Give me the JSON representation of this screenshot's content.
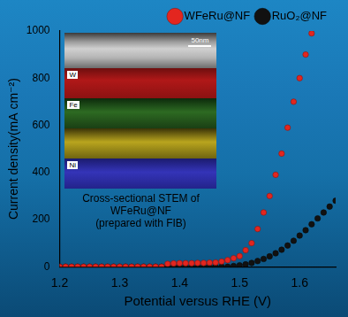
{
  "chart_data": {
    "type": "scatter",
    "x_label": "Potential versus RHE (V)",
    "y_label": "Current density(mA cm⁻²)",
    "x": [
      1.2,
      1.21,
      1.22,
      1.23,
      1.24,
      1.25,
      1.26,
      1.27,
      1.28,
      1.29,
      1.3,
      1.31,
      1.32,
      1.33,
      1.34,
      1.35,
      1.36,
      1.37,
      1.38,
      1.39,
      1.4,
      1.41,
      1.42,
      1.43,
      1.44,
      1.45,
      1.46,
      1.47,
      1.48,
      1.49,
      1.5,
      1.51,
      1.52,
      1.53,
      1.54,
      1.55,
      1.56,
      1.57,
      1.58,
      1.59,
      1.6,
      1.61,
      1.62,
      1.63,
      1.64,
      1.65,
      1.66
    ],
    "series": [
      {
        "name": "WFeRu@NF",
        "color": "#e3261f",
        "marker": "circle",
        "values": [
          0,
          0,
          0,
          0,
          0,
          0,
          0,
          0,
          0,
          0,
          0,
          0,
          0,
          0,
          0,
          0,
          0,
          0,
          12,
          14,
          15,
          15,
          15,
          16,
          16,
          17,
          18,
          22,
          28,
          36,
          45,
          70,
          100,
          160,
          230,
          300,
          390,
          480,
          590,
          700,
          800,
          900,
          990,
          null,
          null,
          null,
          null
        ]
      },
      {
        "name": "RuO₂@NF",
        "color": "#111111",
        "marker": "circle",
        "values": [
          0,
          0,
          0,
          0,
          0,
          0,
          0,
          0,
          0,
          0,
          0,
          0,
          0,
          0,
          0,
          0,
          0,
          0,
          0,
          0,
          0,
          0,
          0,
          0,
          0,
          0,
          0,
          0,
          0,
          3,
          6,
          10,
          16,
          24,
          33,
          44,
          57,
          72,
          90,
          110,
          132,
          155,
          180,
          205,
          230,
          255,
          280
        ]
      }
    ],
    "xlim": [
      1.2,
      1.66
    ],
    "xticks": [
      1.2,
      1.3,
      1.4,
      1.5,
      1.6
    ],
    "ylim": [
      0,
      1000
    ],
    "yticks": [
      0,
      200,
      400,
      600,
      800,
      1000
    ],
    "grid": false,
    "legend": "upper right",
    "inset": {
      "scale_bar": "50nm",
      "maps": [
        "W",
        "Fe",
        "Ni"
      ],
      "caption": [
        "Cross-sectional STEM of WFeRu@NF",
        "(prepared with FIB)"
      ]
    }
  }
}
